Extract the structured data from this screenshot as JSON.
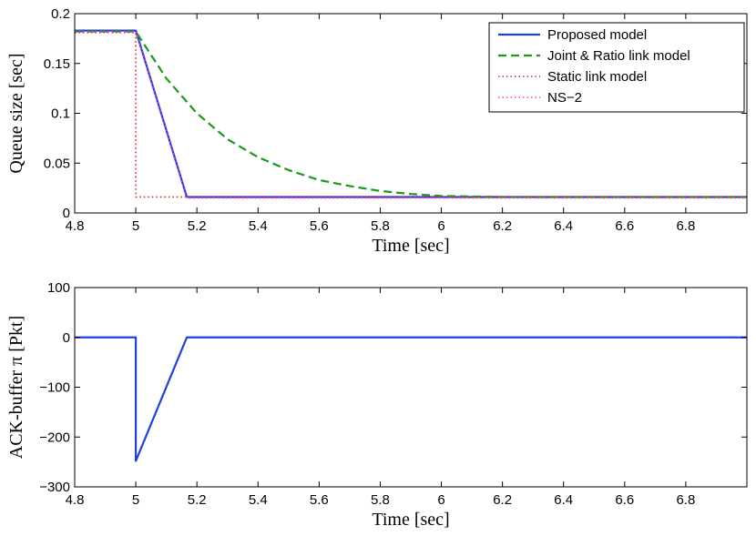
{
  "chart_data": [
    {
      "type": "line",
      "xlabel": "Time [sec]",
      "ylabel": "Queue size [sec]",
      "xlim": [
        4.8,
        7.0
      ],
      "ylim": [
        0,
        0.2
      ],
      "xticks": [
        "4.8",
        "5",
        "5.2",
        "5.4",
        "5.6",
        "5.8",
        "6",
        "6.2",
        "6.4",
        "6.6",
        "6.8"
      ],
      "yticks": [
        "0",
        "0.05",
        "0.1",
        "0.15",
        "0.2"
      ],
      "grid": false,
      "legend_position": "top-right",
      "series": [
        {
          "name": "Proposed model",
          "color": "#1f3fe0",
          "style": "solid",
          "x": [
            4.8,
            5.0,
            5.167,
            7.0
          ],
          "y": [
            0.183,
            0.183,
            0.016,
            0.016
          ]
        },
        {
          "name": "Joint & Ratio link model",
          "color": "#1a9a1a",
          "style": "dashed",
          "x": [
            4.8,
            5.0,
            5.1,
            5.2,
            5.3,
            5.4,
            5.5,
            5.6,
            5.7,
            5.8,
            5.9,
            6.0,
            6.2,
            6.4,
            7.0
          ],
          "y": [
            0.182,
            0.182,
            0.135,
            0.1,
            0.074,
            0.056,
            0.043,
            0.033,
            0.027,
            0.022,
            0.019,
            0.017,
            0.016,
            0.016,
            0.016
          ]
        },
        {
          "name": "Static link model",
          "color": "#e02020",
          "style": "dotted",
          "x": [
            4.8,
            5.0,
            5.0,
            7.0
          ],
          "y": [
            0.181,
            0.181,
            0.016,
            0.016
          ]
        },
        {
          "name": "NS−2",
          "color": "#ff33cc",
          "style": "dotted",
          "x": [
            4.8,
            5.0,
            5.167,
            7.0
          ],
          "y": [
            0.182,
            0.182,
            0.015,
            0.015
          ]
        }
      ]
    },
    {
      "type": "line",
      "xlabel": "Time [sec]",
      "ylabel": "ACK-buffer π [Pkt]",
      "xlim": [
        4.8,
        7.0
      ],
      "ylim": [
        -300,
        100
      ],
      "xticks": [
        "4.8",
        "5",
        "5.2",
        "5.4",
        "5.6",
        "5.8",
        "6",
        "6.2",
        "6.4",
        "6.6",
        "6.8"
      ],
      "yticks": [
        "100",
        "0",
        "−100",
        "−200",
        "−300"
      ],
      "grid": false,
      "series": [
        {
          "color": "#1f3fe0",
          "style": "solid",
          "x": [
            4.8,
            5.0,
            5.0,
            5.167,
            7.0
          ],
          "y": [
            0,
            0,
            -248,
            0,
            0
          ]
        }
      ]
    }
  ]
}
